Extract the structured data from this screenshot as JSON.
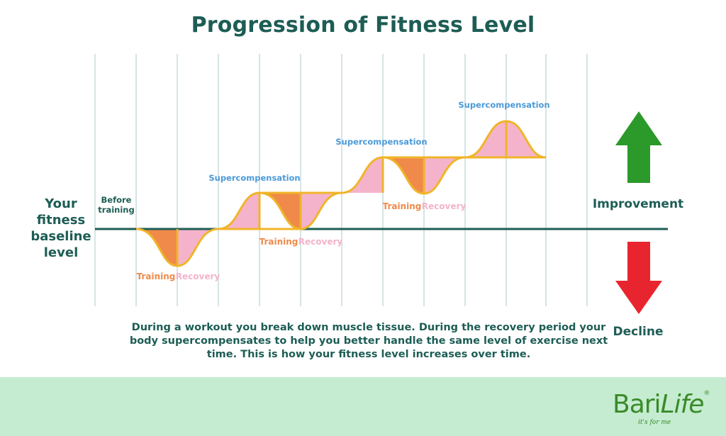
{
  "title": "Progression of Fitness Level",
  "baseline_label": [
    "Your",
    "fitness",
    "baseline",
    "level"
  ],
  "before_label": [
    "Before",
    "training"
  ],
  "phase_labels": {
    "training": "Training",
    "recovery": "Recovery",
    "supercompensation": "Supercompensation"
  },
  "arrows": {
    "improvement": "Improvement",
    "decline": "Decline"
  },
  "caption": "During a workout you break down muscle tissue. During the recovery period your body supercompensates to help you better handle the same level of exercise next time. This is how your fitness level increases over time.",
  "logo": {
    "brand_start": "Bari",
    "brand_end": "Life",
    "tagline": "it's for me",
    "registered": "®"
  },
  "colors": {
    "title": "#1d5d55",
    "baseline": "#1d5d55",
    "grid": "#c8dcdc",
    "curve": "#f0b429",
    "training_fill": "#ef8a4a",
    "recovery_fill": "#f4b3cb",
    "supercomp_text": "#4a9ad8",
    "improve_arrow": "#2b9a2a",
    "decline_arrow": "#e8242e",
    "footer": "#c5ecd0"
  }
}
